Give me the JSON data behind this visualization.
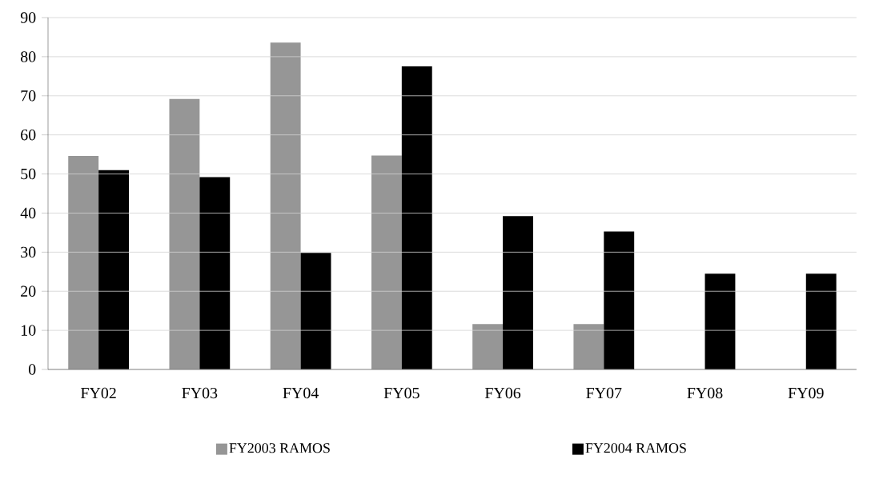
{
  "chart_data": {
    "type": "bar",
    "categories": [
      "FY02",
      "FY03",
      "FY04",
      "FY05",
      "FY06",
      "FY07",
      "FY08",
      "FY09"
    ],
    "series": [
      {
        "name": "FY2003 RAMOS",
        "color": "#969696",
        "values": [
          54.6,
          69.2,
          83.6,
          54.7,
          11.6,
          11.6,
          null,
          null
        ]
      },
      {
        "name": "FY2004 RAMOS",
        "color": "#000000",
        "values": [
          51.0,
          49.2,
          29.8,
          77.5,
          39.2,
          35.3,
          24.5,
          24.5
        ]
      }
    ],
    "ylim": [
      0,
      90
    ],
    "yticks": [
      0,
      10,
      20,
      30,
      40,
      50,
      60,
      70,
      80,
      90
    ],
    "grid": "y",
    "legend": "bottom"
  }
}
